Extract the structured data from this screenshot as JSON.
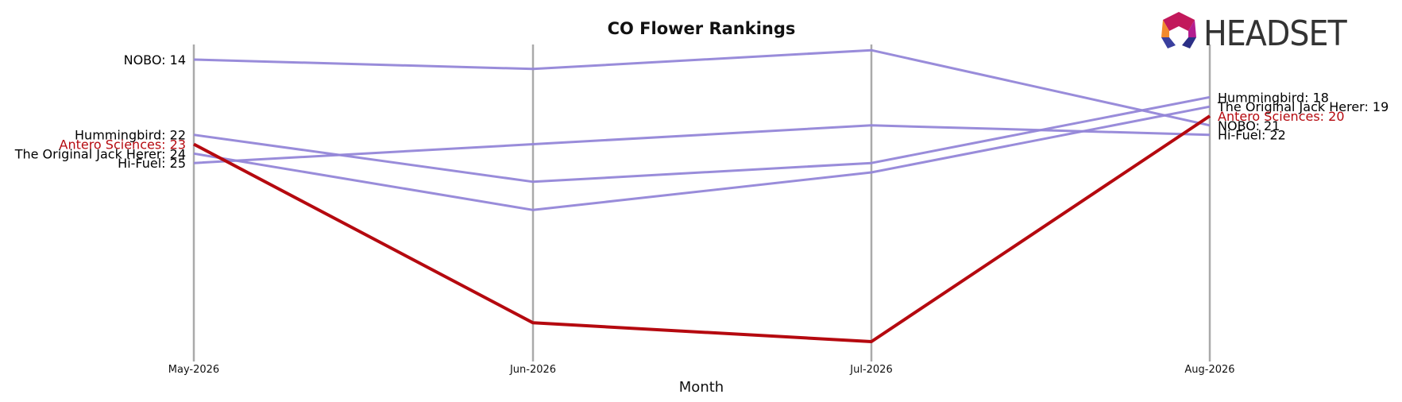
{
  "chart_data": {
    "type": "line",
    "title": "CO Flower Rankings",
    "xlabel": "Month",
    "ylabel": "",
    "categories": [
      "May-2026",
      "Jun-2026",
      "Jul-2026",
      "Aug-2026"
    ],
    "ylim": [
      45,
      8
    ],
    "y_inverted": true,
    "grid": "vertical",
    "highlight_series": "Antero Sciences",
    "series": [
      {
        "name": "NOBO",
        "values": [
          14,
          15,
          13,
          21
        ],
        "color": "#9486d8",
        "highlight": false,
        "start_label": "NOBO: 14",
        "end_label": "NOBO: 21"
      },
      {
        "name": "Hummingbird",
        "values": [
          22,
          27,
          25,
          18
        ],
        "color": "#9486d8",
        "highlight": false,
        "start_label": "Hummingbird: 22",
        "end_label": "Hummingbird: 18"
      },
      {
        "name": "The Original Jack Herer",
        "values": [
          24,
          30,
          26,
          19
        ],
        "color": "#9486d8",
        "highlight": false,
        "start_label": "The Original Jack Herer: 24",
        "end_label": "The Original Jack Herer: 19"
      },
      {
        "name": "Hi-Fuel",
        "values": [
          25,
          23,
          21,
          22
        ],
        "color": "#9486d8",
        "highlight": false,
        "start_label": "Hi-Fuel: 25",
        "end_label": "Hi-Fuel: 22"
      },
      {
        "name": "Antero Sciences",
        "values": [
          23,
          42,
          44,
          20
        ],
        "color": "#b5090f",
        "highlight": true,
        "start_label": "Antero Sciences: 23",
        "end_label": "Antero Sciences: 20"
      }
    ]
  },
  "logo": {
    "text": "HEADSET",
    "icon": "headset-hexagon-logo-icon"
  }
}
